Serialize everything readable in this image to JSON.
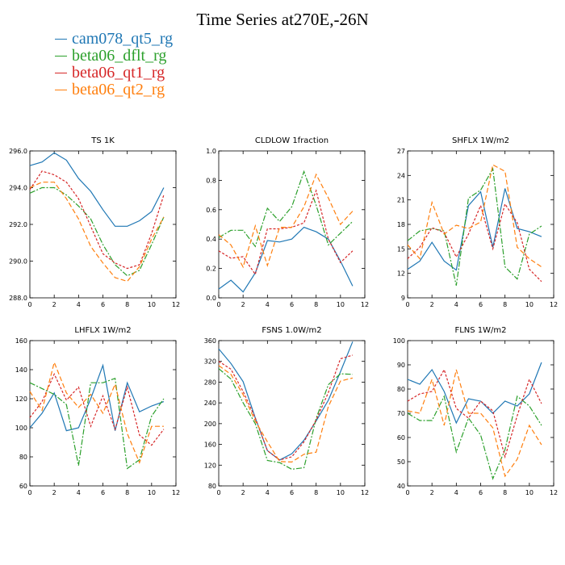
{
  "title": "Time Series at270E,-26N",
  "legend": [
    {
      "name": "cam078_qt5_rg",
      "color": "#1f77b4"
    },
    {
      "name": "beta06_dflt_rg",
      "color": "#2ca02c"
    },
    {
      "name": "beta06_qt1_rg",
      "color": "#d62728"
    },
    {
      "name": "beta06_qt2_rg",
      "color": "#ff7f0e"
    }
  ],
  "chart_data": [
    {
      "type": "line",
      "title": "TS   1K",
      "xlim": [
        0,
        12
      ],
      "xticks": [
        0,
        2,
        4,
        6,
        8,
        10,
        12
      ],
      "ylim": [
        288,
        296
      ],
      "yticks": [
        "288.0",
        "290.0",
        "292.0",
        "294.0",
        "296.0"
      ],
      "x": [
        0,
        1,
        2,
        3,
        4,
        5,
        6,
        7,
        8,
        9,
        10,
        11
      ],
      "series": [
        {
          "name": "cam078_qt5_rg",
          "values": [
            295.2,
            295.4,
            295.9,
            295.5,
            294.5,
            293.8,
            292.8,
            291.9,
            291.9,
            292.2,
            292.7,
            294.0
          ]
        },
        {
          "name": "beta06_dflt_rg",
          "values": [
            293.7,
            294.0,
            294.0,
            293.6,
            293.0,
            292.3,
            290.9,
            289.8,
            289.2,
            289.5,
            290.9,
            292.4
          ]
        },
        {
          "name": "beta06_qt1_rg",
          "values": [
            293.9,
            294.9,
            294.7,
            294.3,
            293.4,
            291.9,
            290.4,
            289.9,
            289.6,
            289.8,
            291.5,
            293.6
          ]
        },
        {
          "name": "beta06_qt2_rg",
          "values": [
            294.0,
            294.3,
            294.3,
            293.4,
            292.3,
            290.8,
            289.9,
            289.1,
            288.9,
            289.7,
            291.2,
            292.4
          ]
        }
      ]
    },
    {
      "type": "line",
      "title": "CLDLOW   1fraction",
      "xlim": [
        0,
        12
      ],
      "xticks": [
        0,
        2,
        4,
        6,
        8,
        10,
        12
      ],
      "ylim": [
        0,
        1
      ],
      "yticks": [
        "0.0",
        "0.2",
        "0.4",
        "0.6",
        "0.8",
        "1.0"
      ],
      "x": [
        0,
        1,
        2,
        3,
        4,
        5,
        6,
        7,
        8,
        9,
        10,
        11
      ],
      "series": [
        {
          "name": "cam078_qt5_rg",
          "values": [
            0.06,
            0.12,
            0.04,
            0.17,
            0.39,
            0.38,
            0.4,
            0.48,
            0.45,
            0.4,
            0.25,
            0.08
          ]
        },
        {
          "name": "beta06_dflt_rg",
          "values": [
            0.41,
            0.46,
            0.46,
            0.35,
            0.61,
            0.52,
            0.62,
            0.86,
            0.63,
            0.36,
            0.44,
            0.52
          ]
        },
        {
          "name": "beta06_qt1_rg",
          "values": [
            0.32,
            0.27,
            0.28,
            0.16,
            0.47,
            0.47,
            0.48,
            0.51,
            0.73,
            0.4,
            0.24,
            0.32
          ]
        },
        {
          "name": "beta06_qt2_rg",
          "values": [
            0.43,
            0.36,
            0.21,
            0.49,
            0.22,
            0.48,
            0.48,
            0.62,
            0.84,
            0.68,
            0.5,
            0.59
          ]
        }
      ]
    },
    {
      "type": "line",
      "title": "SHFLX   1W/m2",
      "xlim": [
        0,
        12
      ],
      "xticks": [
        0,
        2,
        4,
        6,
        8,
        10,
        12
      ],
      "ylim": [
        9,
        27
      ],
      "yticks": [
        "9",
        "12",
        "15",
        "18",
        "21",
        "24",
        "27"
      ],
      "x": [
        0,
        1,
        2,
        3,
        4,
        5,
        6,
        7,
        8,
        9,
        10,
        11
      ],
      "series": [
        {
          "name": "cam078_qt5_rg",
          "values": [
            12.5,
            13.5,
            15.8,
            13.5,
            12.4,
            20.3,
            22.0,
            15.2,
            22.4,
            17.5,
            17.1,
            16.5
          ]
        },
        {
          "name": "beta06_dflt_rg",
          "values": [
            16.0,
            17.2,
            17.5,
            17.2,
            10.5,
            21.2,
            22.2,
            24.8,
            12.8,
            11.3,
            16.8,
            17.8
          ]
        },
        {
          "name": "beta06_qt1_rg",
          "values": [
            13.8,
            15.2,
            17.6,
            17.0,
            14.0,
            16.8,
            20.3,
            15.0,
            20.5,
            18.2,
            12.5,
            11.0
          ]
        },
        {
          "name": "beta06_qt2_rg",
          "values": [
            15.5,
            13.8,
            20.7,
            16.8,
            17.9,
            17.5,
            18.3,
            25.3,
            24.5,
            15.2,
            13.8,
            12.8
          ]
        }
      ]
    },
    {
      "type": "line",
      "title": "LHFLX   1W/m2",
      "xlim": [
        0,
        12
      ],
      "xticks": [
        0,
        2,
        4,
        6,
        8,
        10,
        12
      ],
      "ylim": [
        60,
        160
      ],
      "yticks": [
        "60",
        "80",
        "100",
        "120",
        "140",
        "160"
      ],
      "x": [
        0,
        1,
        2,
        3,
        4,
        5,
        6,
        7,
        8,
        9,
        10,
        11
      ],
      "series": [
        {
          "name": "cam078_qt5_rg",
          "values": [
            100,
            110,
            124,
            98,
            100,
            120,
            143,
            98,
            131,
            111,
            115,
            118
          ]
        },
        {
          "name": "beta06_dflt_rg",
          "values": [
            131,
            127,
            123,
            116,
            74,
            131,
            131,
            134,
            72,
            78,
            108,
            120
          ]
        },
        {
          "name": "beta06_qt1_rg",
          "values": [
            107,
            118,
            137,
            119,
            128,
            101,
            122,
            99,
            128,
            95,
            88,
            99
          ]
        },
        {
          "name": "beta06_qt2_rg",
          "values": [
            125,
            112,
            145,
            124,
            114,
            123,
            110,
            130,
            96,
            76,
            101,
            101
          ]
        }
      ]
    },
    {
      "type": "line",
      "title": "FSNS   1.0W/m2",
      "xlim": [
        0,
        12
      ],
      "xticks": [
        0,
        2,
        4,
        6,
        8,
        10,
        12
      ],
      "ylim": [
        80,
        360
      ],
      "yticks": [
        "80",
        "120",
        "160",
        "200",
        "240",
        "280",
        "320",
        "360"
      ],
      "x": [
        0,
        1,
        2,
        3,
        4,
        5,
        6,
        7,
        8,
        9,
        10,
        11
      ],
      "series": [
        {
          "name": "cam078_qt5_rg",
          "values": [
            344,
            316,
            281,
            211,
            148,
            130,
            142,
            168,
            205,
            245,
            300,
            358
          ]
        },
        {
          "name": "beta06_dflt_rg",
          "values": [
            306,
            286,
            240,
            200,
            129,
            125,
            112,
            115,
            210,
            275,
            296,
            295
          ]
        },
        {
          "name": "beta06_qt1_rg",
          "values": [
            320,
            305,
            262,
            211,
            148,
            130,
            136,
            165,
            207,
            260,
            325,
            332
          ]
        },
        {
          "name": "beta06_qt2_rg",
          "values": [
            312,
            295,
            256,
            205,
            165,
            127,
            126,
            141,
            145,
            233,
            282,
            288
          ]
        }
      ]
    },
    {
      "type": "line",
      "title": "FLNS   1W/m2",
      "xlim": [
        0,
        12
      ],
      "xticks": [
        0,
        2,
        4,
        6,
        8,
        10,
        12
      ],
      "ylim": [
        40,
        100
      ],
      "yticks": [
        "40",
        "50",
        "60",
        "70",
        "80",
        "90",
        "100"
      ],
      "x": [
        0,
        1,
        2,
        3,
        4,
        5,
        6,
        7,
        8,
        9,
        10,
        11
      ],
      "series": [
        {
          "name": "cam078_qt5_rg",
          "values": [
            84,
            82,
            88,
            79,
            66,
            76,
            75,
            70,
            75,
            73,
            78,
            91
          ]
        },
        {
          "name": "beta06_dflt_rg",
          "values": [
            70,
            67,
            67,
            77,
            54,
            68,
            61,
            43,
            55,
            77,
            73,
            65
          ]
        },
        {
          "name": "beta06_qt1_rg",
          "values": [
            75,
            78,
            79,
            88,
            72,
            68,
            75,
            71,
            52,
            69,
            84,
            74
          ]
        },
        {
          "name": "beta06_qt2_rg",
          "values": [
            71,
            70,
            84,
            65,
            88,
            70,
            70,
            64,
            44,
            51,
            65,
            57
          ]
        }
      ]
    }
  ]
}
